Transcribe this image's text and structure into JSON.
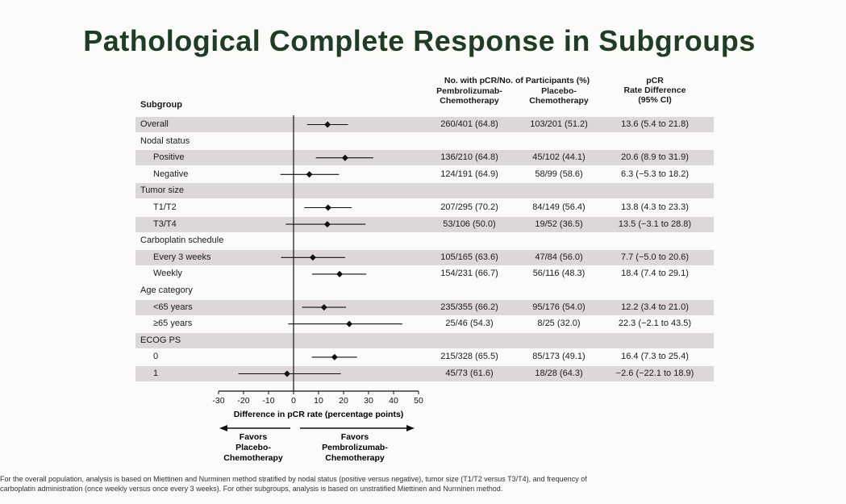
{
  "title": "Pathological Complete Response in Subgroups",
  "headers": {
    "subgroup": "Subgroup",
    "counts_group": "No. with pCR/No. of Participants (%)",
    "arm1_line1": "Pembrolizumab-",
    "arm1_line2": "Chemotherapy",
    "arm2_line1": "Placebo-",
    "arm2_line2": "Chemotherapy",
    "diff_line1": "pCR",
    "diff_line2": "Rate Difference",
    "diff_line3": "(95% CI)"
  },
  "rows": [
    {
      "label": "Overall",
      "type": "data",
      "indent": false,
      "shaded": true,
      "pembro": "260/401 (64.8)",
      "placebo": "103/201 (51.2)",
      "diff": "13.6 (5.4 to 21.8)",
      "est": 13.6,
      "lo": 5.4,
      "hi": 21.8
    },
    {
      "label": "Nodal status",
      "type": "header",
      "shaded": false
    },
    {
      "label": "Positive",
      "type": "data",
      "indent": true,
      "shaded": true,
      "pembro": "136/210 (64.8)",
      "placebo": "45/102 (44.1)",
      "diff": "20.6 (8.9 to 31.9)",
      "est": 20.6,
      "lo": 8.9,
      "hi": 31.9
    },
    {
      "label": "Negative",
      "type": "data",
      "indent": true,
      "shaded": false,
      "pembro": "124/191 (64.9)",
      "placebo": "58/99 (58.6)",
      "diff": "6.3 (−5.3 to 18.2)",
      "est": 6.3,
      "lo": -5.3,
      "hi": 18.2
    },
    {
      "label": "Tumor size",
      "type": "header",
      "shaded": true
    },
    {
      "label": "T1/T2",
      "type": "data",
      "indent": true,
      "shaded": false,
      "pembro": "207/295 (70.2)",
      "placebo": "84/149 (56.4)",
      "diff": "13.8 (4.3 to 23.3)",
      "est": 13.8,
      "lo": 4.3,
      "hi": 23.3
    },
    {
      "label": "T3/T4",
      "type": "data",
      "indent": true,
      "shaded": true,
      "pembro": "53/106 (50.0)",
      "placebo": "19/52 (36.5)",
      "diff": "13.5 (−3.1 to 28.8)",
      "est": 13.5,
      "lo": -3.1,
      "hi": 28.8
    },
    {
      "label": "Carboplatin schedule",
      "type": "header",
      "shaded": false
    },
    {
      "label": "Every 3 weeks",
      "type": "data",
      "indent": true,
      "shaded": true,
      "pembro": "105/165 (63.6)",
      "placebo": "47/84 (56.0)",
      "diff": "7.7 (−5.0 to 20.6)",
      "est": 7.7,
      "lo": -5.0,
      "hi": 20.6
    },
    {
      "label": "Weekly",
      "type": "data",
      "indent": true,
      "shaded": false,
      "pembro": "154/231 (66.7)",
      "placebo": "56/116 (48.3)",
      "diff": "18.4 (7.4 to 29.1)",
      "est": 18.4,
      "lo": 7.4,
      "hi": 29.1
    },
    {
      "label": "Age category",
      "type": "header",
      "shaded": false
    },
    {
      "label": "<65 years",
      "type": "data",
      "indent": true,
      "shaded": true,
      "pembro": "235/355 (66.2)",
      "placebo": "95/176 (54.0)",
      "diff": "12.2 (3.4 to 21.0)",
      "est": 12.2,
      "lo": 3.4,
      "hi": 21.0
    },
    {
      "label": "≥65 years",
      "type": "data",
      "indent": true,
      "shaded": false,
      "pembro": "25/46 (54.3)",
      "placebo": "8/25 (32.0)",
      "diff": "22.3 (−2.1 to 43.5)",
      "est": 22.3,
      "lo": -2.1,
      "hi": 43.5
    },
    {
      "label": "ECOG PS",
      "type": "header",
      "shaded": true
    },
    {
      "label": "0",
      "type": "data",
      "indent": true,
      "shaded": false,
      "pembro": "215/328 (65.5)",
      "placebo": "85/173 (49.1)",
      "diff": "16.4 (7.3 to 25.4)",
      "est": 16.4,
      "lo": 7.3,
      "hi": 25.4
    },
    {
      "label": "1",
      "type": "data",
      "indent": true,
      "shaded": true,
      "pembro": "45/73 (61.6)",
      "placebo": "18/28 (64.3)",
      "diff": "−2.6 (−22.1 to 18.9)",
      "est": -2.6,
      "lo": -22.1,
      "hi": 18.9
    }
  ],
  "chart_data": {
    "type": "forest",
    "xlabel": "Difference in pCR rate (percentage points)",
    "xlim": [
      -30,
      50
    ],
    "xticks": [
      -30,
      -20,
      -10,
      0,
      10,
      20,
      30,
      40,
      50
    ],
    "reference_line": 0,
    "categories": [
      "Overall",
      "Positive",
      "Negative",
      "T1/T2",
      "T3/T4",
      "Every 3 weeks",
      "Weekly",
      "<65 years",
      "≥65 years",
      "0",
      "1"
    ],
    "estimates": [
      13.6,
      20.6,
      6.3,
      13.8,
      13.5,
      7.7,
      18.4,
      12.2,
      22.3,
      16.4,
      -2.6
    ],
    "ci_lower": [
      5.4,
      8.9,
      -5.3,
      4.3,
      -3.1,
      -5.0,
      7.4,
      3.4,
      -2.1,
      7.3,
      -22.1
    ],
    "ci_upper": [
      21.8,
      31.9,
      18.2,
      23.3,
      28.8,
      20.6,
      29.1,
      21.0,
      43.5,
      25.4,
      18.9
    ]
  },
  "favors_left": [
    "Favors",
    "Placebo-",
    "Chemotherapy"
  ],
  "favors_right": [
    "Favors",
    "Pembrolizumab-",
    "Chemotherapy"
  ],
  "footnote_line1": "For the overall population, analysis is based on Miettinen and Nurminen method stratified by nodal status (positive versus negative), tumor size (T1/T2 versus T3/T4), and frequency of",
  "footnote_line2": "carboplatin administration (once weekly versus once every 3 weeks). For other subgroups, analysis is based on unstratified Miettinen and Nurminen method."
}
